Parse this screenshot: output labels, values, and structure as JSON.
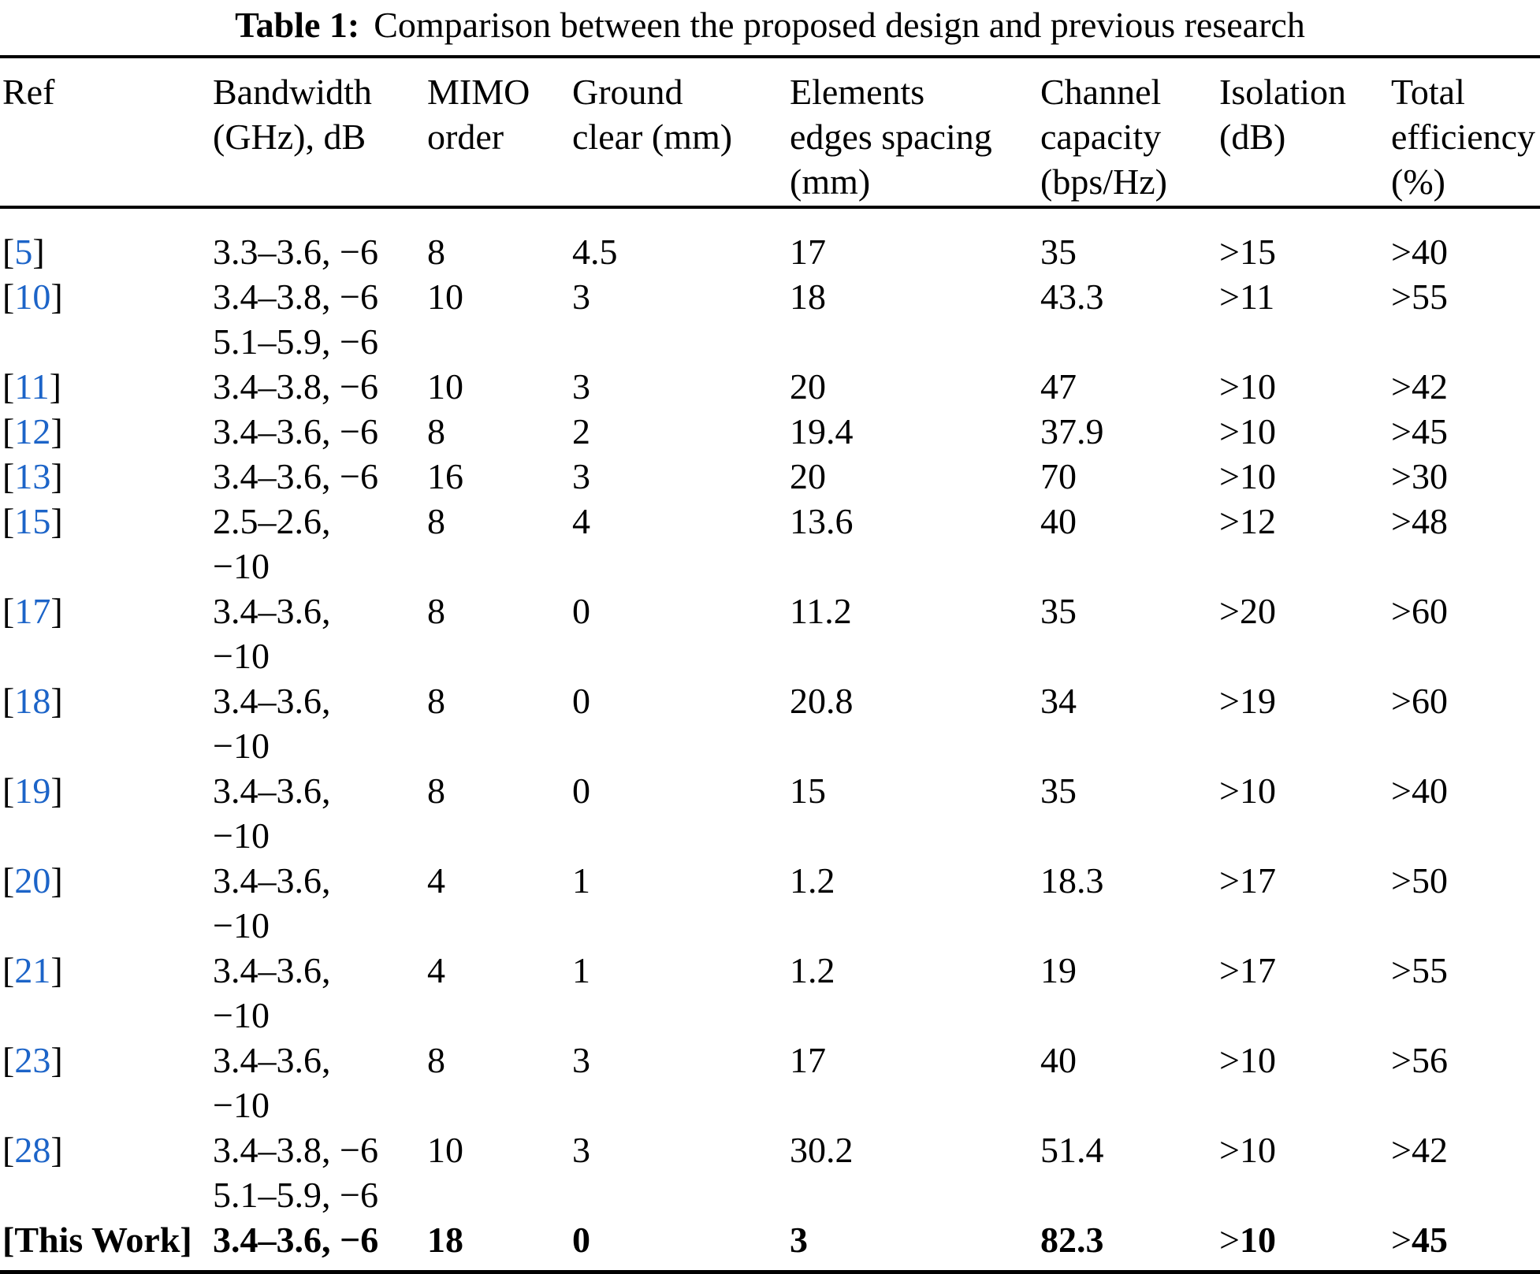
{
  "table": {
    "caption": {
      "label": "Table 1:",
      "text": "Comparison between the proposed design and previous research"
    },
    "colors": {
      "citation_link": "#1c64c8",
      "text": "#000000"
    },
    "brackets": {
      "open": "[",
      "close": "]"
    },
    "columns": [
      {
        "id": "ref",
        "lines": [
          "Ref"
        ]
      },
      {
        "id": "bandwidth",
        "lines": [
          "Bandwidth",
          "(GHz), dB"
        ]
      },
      {
        "id": "mimo",
        "lines": [
          "MIMO",
          "order"
        ]
      },
      {
        "id": "ground",
        "lines": [
          "Ground",
          "clear (mm)"
        ]
      },
      {
        "id": "spacing",
        "lines": [
          "Elements",
          "edges spacing",
          "(mm)"
        ]
      },
      {
        "id": "capacity",
        "lines": [
          "Channel",
          "capacity",
          "(bps/Hz)"
        ]
      },
      {
        "id": "isolation",
        "lines": [
          "Isolation",
          "(dB)"
        ]
      },
      {
        "id": "efficiency",
        "lines": [
          "Total",
          "efficiency",
          "(%)"
        ]
      }
    ],
    "rows": [
      {
        "ref": "5",
        "link": true,
        "bold": false,
        "bandwidth": [
          "3.3–3.6, −6"
        ],
        "mimo": "8",
        "ground": "4.5",
        "spacing": "17",
        "capacity": "35",
        "isolation": ">15",
        "efficiency": ">40"
      },
      {
        "ref": "10",
        "link": true,
        "bold": false,
        "bandwidth": [
          "3.4–3.8, −6",
          "5.1–5.9, −6"
        ],
        "mimo": "10",
        "ground": "3",
        "spacing": "18",
        "capacity": "43.3",
        "isolation": ">11",
        "efficiency": ">55"
      },
      {
        "ref": "11",
        "link": true,
        "bold": false,
        "bandwidth": [
          "3.4–3.8, −6"
        ],
        "mimo": "10",
        "ground": "3",
        "spacing": "20",
        "capacity": "47",
        "isolation": ">10",
        "efficiency": ">42"
      },
      {
        "ref": "12",
        "link": true,
        "bold": false,
        "bandwidth": [
          "3.4–3.6, −6"
        ],
        "mimo": "8",
        "ground": "2",
        "spacing": "19.4",
        "capacity": "37.9",
        "isolation": ">10",
        "efficiency": ">45"
      },
      {
        "ref": "13",
        "link": true,
        "bold": false,
        "bandwidth": [
          "3.4–3.6, −6"
        ],
        "mimo": "16",
        "ground": "3",
        "spacing": "20",
        "capacity": "70",
        "isolation": ">10",
        "efficiency": ">30"
      },
      {
        "ref": "15",
        "link": true,
        "bold": false,
        "bandwidth": [
          "2.5–2.6,",
          "−10"
        ],
        "mimo": "8",
        "ground": "4",
        "spacing": "13.6",
        "capacity": "40",
        "isolation": ">12",
        "efficiency": ">48"
      },
      {
        "ref": "17",
        "link": true,
        "bold": false,
        "bandwidth": [
          "3.4–3.6,",
          "−10"
        ],
        "mimo": "8",
        "ground": "0",
        "spacing": "11.2",
        "capacity": "35",
        "isolation": ">20",
        "efficiency": ">60"
      },
      {
        "ref": "18",
        "link": true,
        "bold": false,
        "bandwidth": [
          "3.4–3.6,",
          "−10"
        ],
        "mimo": "8",
        "ground": "0",
        "spacing": "20.8",
        "capacity": "34",
        "isolation": ">19",
        "efficiency": ">60"
      },
      {
        "ref": "19",
        "link": true,
        "bold": false,
        "bandwidth": [
          "3.4–3.6,",
          "−10"
        ],
        "mimo": "8",
        "ground": "0",
        "spacing": "15",
        "capacity": "35",
        "isolation": ">10",
        "efficiency": ">40"
      },
      {
        "ref": "20",
        "link": true,
        "bold": false,
        "bandwidth": [
          "3.4–3.6,",
          "−10"
        ],
        "mimo": "4",
        "ground": "1",
        "spacing": "1.2",
        "capacity": "18.3",
        "isolation": ">17",
        "efficiency": ">50"
      },
      {
        "ref": "21",
        "link": true,
        "bold": false,
        "bandwidth": [
          "3.4–3.6,",
          "−10"
        ],
        "mimo": "4",
        "ground": "1",
        "spacing": "1.2",
        "capacity": "19",
        "isolation": ">17",
        "efficiency": ">55"
      },
      {
        "ref": "23",
        "link": true,
        "bold": false,
        "bandwidth": [
          "3.4–3.6,",
          "−10"
        ],
        "mimo": "8",
        "ground": "3",
        "spacing": "17",
        "capacity": "40",
        "isolation": ">10",
        "efficiency": ">56"
      },
      {
        "ref": "28",
        "link": true,
        "bold": false,
        "bandwidth": [
          "3.4–3.8, −6",
          "5.1–5.9, −6"
        ],
        "mimo": "10",
        "ground": "3",
        "spacing": "30.2",
        "capacity": "51.4",
        "isolation": ">10",
        "efficiency": ">42"
      },
      {
        "ref": "This Work",
        "link": false,
        "bold": true,
        "bandwidth": [
          "3.4–3.6, −6"
        ],
        "mimo": "18",
        "ground": "0",
        "spacing": "3",
        "capacity": "82.3",
        "isolation": ">10",
        "efficiency": ">45"
      }
    ]
  }
}
